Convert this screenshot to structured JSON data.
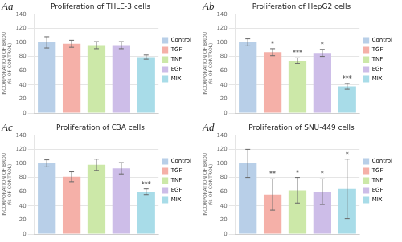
{
  "chart_data": [
    {
      "type": "bar",
      "title": "Proliferation of THLE-3 cells",
      "annotations": [
        "Aa"
      ],
      "categories": [
        "Control",
        "TGF",
        "TNF",
        "EGF",
        "MIX"
      ],
      "values": [
        100,
        98,
        96,
        96,
        79
      ],
      "errors": [
        8,
        5,
        5,
        5,
        3
      ],
      "significance": [
        null,
        null,
        null,
        null,
        null
      ],
      "colors": [
        "#b8cfe8",
        "#f5b0a8",
        "#cce8a8",
        "#cdbde8",
        "#a8dce8"
      ],
      "ylabel": "INCORPORATION OF BRDU\n(% OF CONTROL)",
      "ylim": [
        0,
        140
      ],
      "yticks": [
        0,
        20,
        40,
        60,
        80,
        100,
        120,
        140
      ],
      "grid": true,
      "legend": "right",
      "tick_labels": "y"
    },
    {
      "type": "bar",
      "title": "Proliferation of HepG2 cells",
      "annotations": [
        "Ab"
      ],
      "categories": [
        "Control",
        "TGF",
        "TNF",
        "EGF",
        "MIX"
      ],
      "values": [
        100,
        86,
        74,
        85,
        38
      ],
      "errors": [
        5,
        5,
        4,
        5,
        4
      ],
      "significance": [
        null,
        "*",
        "***",
        "*",
        "***"
      ],
      "colors": [
        "#b8cfe8",
        "#f5b0a8",
        "#cce8a8",
        "#cdbde8",
        "#a8dce8"
      ],
      "ylabel": "INCORPORATION OF BRDU\n(% OF CONTROL)",
      "ylim": [
        0,
        140
      ],
      "yticks": [
        0,
        20,
        40,
        60,
        80,
        100,
        120,
        140
      ],
      "grid": true,
      "legend": "right",
      "tick_labels": "y"
    },
    {
      "type": "bar",
      "title": "Proliferation of C3A cells",
      "annotations": [
        "Ac"
      ],
      "categories": [
        "Control",
        "TGF",
        "TNF",
        "EGF",
        "MIX"
      ],
      "values": [
        100,
        81,
        98,
        93,
        60
      ],
      "errors": [
        5,
        7,
        8,
        8,
        4
      ],
      "significance": [
        null,
        null,
        null,
        null,
        "***"
      ],
      "colors": [
        "#b8cfe8",
        "#f5b0a8",
        "#cce8a8",
        "#cdbde8",
        "#a8dce8"
      ],
      "ylabel": "INCORPORATION OF BRDU\n(% OF CONTROL)",
      "ylim": [
        0,
        140
      ],
      "yticks": [
        0,
        20,
        40,
        60,
        80,
        100,
        120,
        140
      ],
      "grid": true,
      "legend": "right",
      "tick_labels": "y"
    },
    {
      "type": "bar",
      "title": "Proliferation of SNU-449 cells",
      "annotations": [
        "Ad"
      ],
      "categories": [
        "Control",
        "TGF",
        "TNF",
        "EGF",
        "MIX"
      ],
      "values": [
        100,
        56,
        62,
        60,
        64
      ],
      "errors": [
        20,
        22,
        18,
        18,
        42
      ],
      "significance": [
        null,
        "**",
        "*",
        "*",
        "*"
      ],
      "colors": [
        "#b8cfe8",
        "#f5b0a8",
        "#cce8a8",
        "#cdbde8",
        "#a8dce8"
      ],
      "ylabel": "INCORPORATION OF BRDU\n(% OF CONTROL)",
      "ylim": [
        0,
        140
      ],
      "yticks": [
        0,
        20,
        40,
        60,
        80,
        100,
        120,
        140
      ],
      "grid": true,
      "legend": "right",
      "tick_labels": "y"
    }
  ]
}
